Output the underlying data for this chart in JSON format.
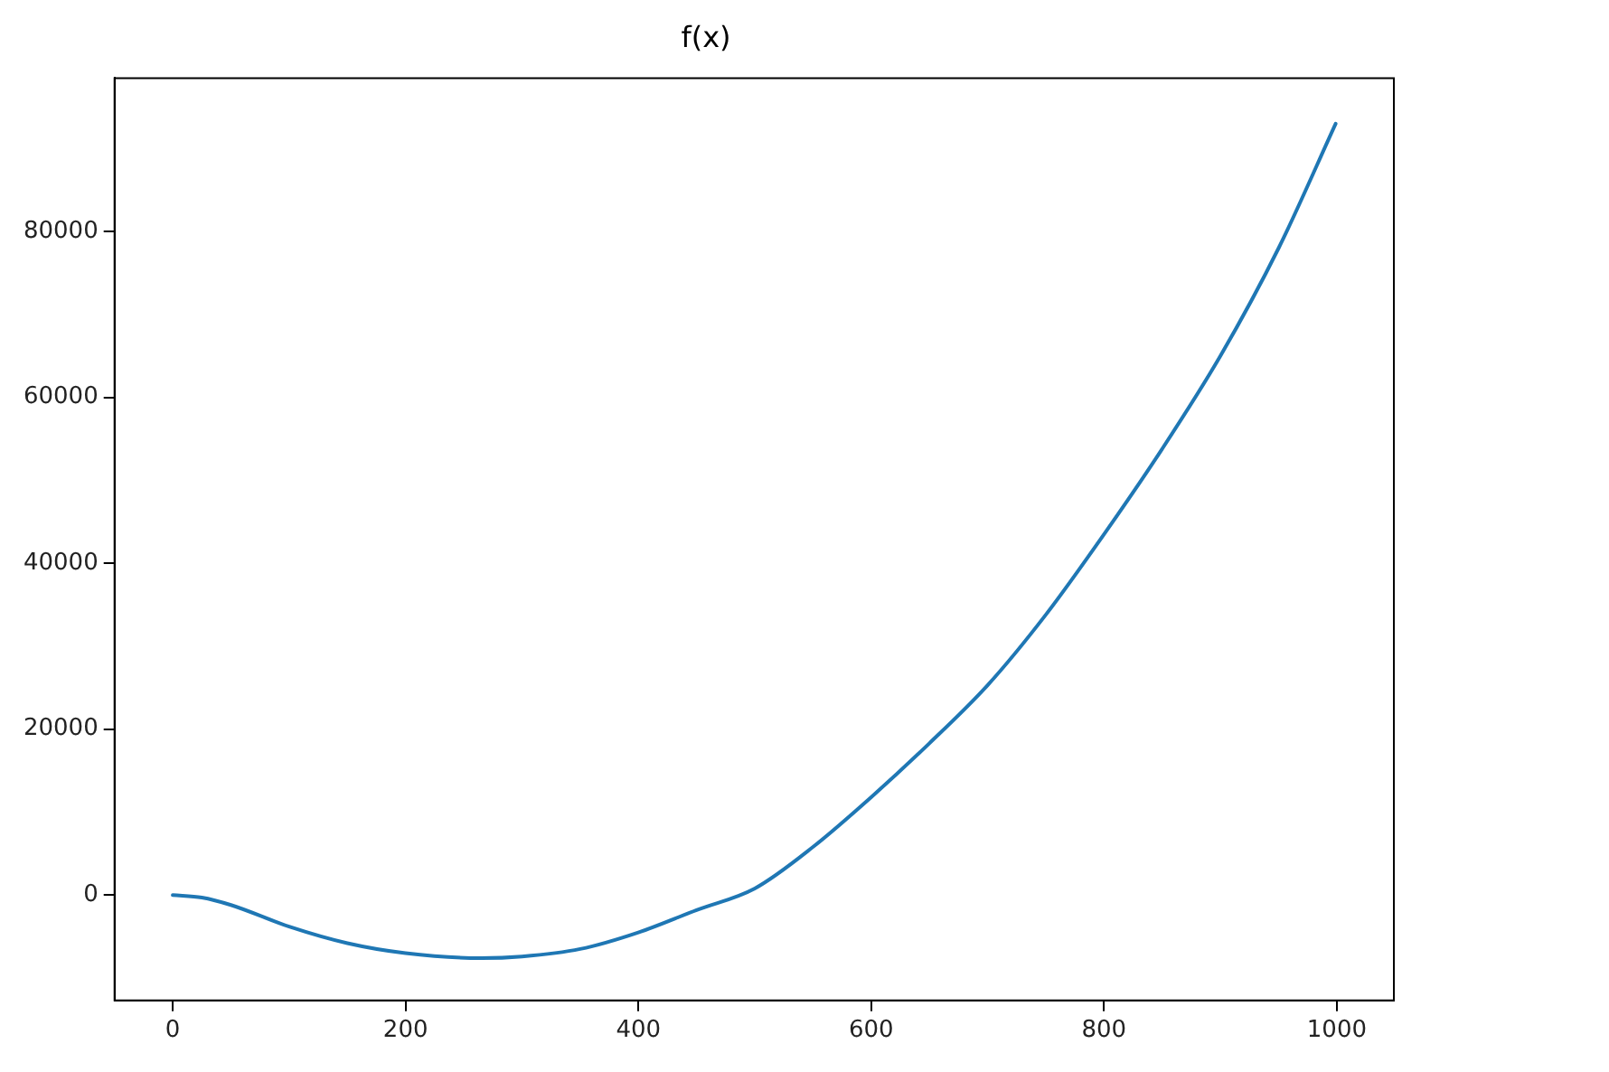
{
  "chart_data": {
    "type": "line",
    "title": "f(x)",
    "x": [
      0,
      25,
      50,
      100,
      150,
      200,
      265,
      300,
      350,
      400,
      450,
      500,
      550,
      600,
      650,
      700,
      750,
      800,
      850,
      900,
      950,
      999
    ],
    "series": [
      {
        "color": "#1f77b4",
        "values": [
          0,
          -300,
          -1200,
          -3800,
          -5800,
          -7000,
          -7600,
          -7400,
          -6500,
          -4500,
          -1800,
          800,
          5800,
          11800,
          18300,
          25300,
          33800,
          43500,
          53800,
          65000,
          78000,
          93000
        ]
      }
    ],
    "xlim": [
      -50,
      1049
    ],
    "ylim": [
      -12700,
      98500
    ],
    "xticks": [
      0,
      200,
      400,
      600,
      800,
      1000
    ],
    "yticks": [
      0,
      20000,
      40000,
      60000,
      80000
    ],
    "grid": false,
    "legend": false,
    "marker": "none",
    "line_style": "solid"
  }
}
